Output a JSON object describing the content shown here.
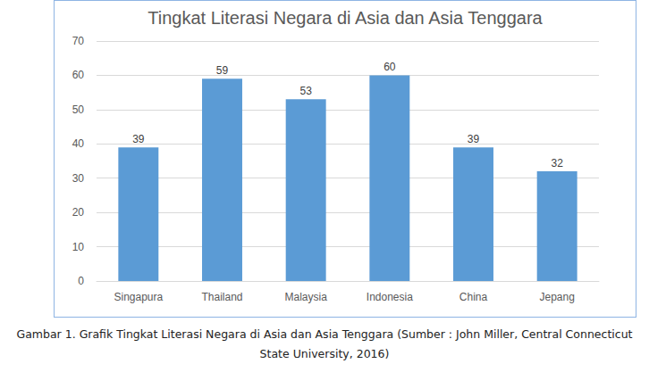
{
  "chart_data": {
    "type": "bar",
    "title": "Tingkat Literasi Negara di Asia dan Asia Tenggara",
    "caption": "Gambar 1. Grafik Tingkat Literasi Negara di Asia dan Asia Tenggara (Sumber : John Miller, Central Connecticut State University, 2016)",
    "categories": [
      "Singapura",
      "Thailand",
      "Malaysia",
      "Indonesia",
      "China",
      "Jepang"
    ],
    "values": [
      39,
      59,
      53,
      60,
      39,
      32
    ],
    "color": "#5b9bd5",
    "ylim": [
      0,
      70
    ],
    "yticks": [
      0,
      10,
      20,
      30,
      40,
      50,
      60,
      70
    ],
    "grid": true,
    "data_labels": true
  }
}
